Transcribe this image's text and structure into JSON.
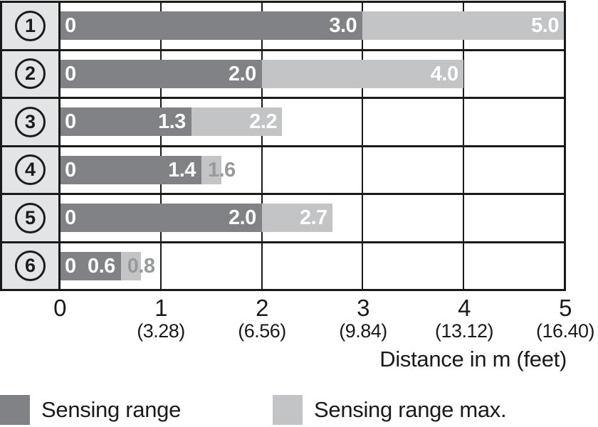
{
  "chart_data": {
    "type": "bar",
    "orientation": "horizontal",
    "stacked": true,
    "x_axis": {
      "title": "Distance in m (feet)",
      "range_m": [
        0,
        5
      ],
      "grid": true,
      "ticks": [
        {
          "m": "0",
          "feet": ""
        },
        {
          "m": "1",
          "feet": "(3.28)"
        },
        {
          "m": "2",
          "feet": "(6.56)"
        },
        {
          "m": "3",
          "feet": "(9.84)"
        },
        {
          "m": "4",
          "feet": "(13.12)"
        },
        {
          "m": "5",
          "feet": "(16.40)"
        }
      ]
    },
    "rows": [
      {
        "label": "1",
        "start_label": "0",
        "sensing_m": 3.0,
        "sensing_label": "3.0",
        "max_m": 5.0,
        "max_label": "5.0",
        "max_label_placement": "inside"
      },
      {
        "label": "2",
        "start_label": "0",
        "sensing_m": 2.0,
        "sensing_label": "2.0",
        "max_m": 4.0,
        "max_label": "4.0",
        "max_label_placement": "inside"
      },
      {
        "label": "3",
        "start_label": "0",
        "sensing_m": 1.3,
        "sensing_label": "1.3",
        "max_m": 2.2,
        "max_label": "2.2",
        "max_label_placement": "inside"
      },
      {
        "label": "4",
        "start_label": "0",
        "sensing_m": 1.4,
        "sensing_label": "1.4",
        "max_m": 1.6,
        "max_label": "1.6",
        "max_label_placement": "edge"
      },
      {
        "label": "5",
        "start_label": "0",
        "sensing_m": 2.0,
        "sensing_label": "2.0",
        "max_m": 2.7,
        "max_label": "2.7",
        "max_label_placement": "inside"
      },
      {
        "label": "6",
        "start_label": "0",
        "sensing_m": 0.6,
        "sensing_label": "0.6",
        "max_m": 0.8,
        "max_label": "0.8",
        "max_label_placement": "edge"
      }
    ],
    "legend": [
      {
        "label": "Sensing range",
        "swatch": "dark"
      },
      {
        "label": "Sensing range max.",
        "swatch": "light"
      }
    ]
  },
  "colors": {
    "sensing": "#808285",
    "sensing_max": "#c2c4c6",
    "row_header_bg": "#e3e4e5",
    "border": "#1a1a1a",
    "bar_value_text": "#ffffff",
    "edge_value_text": "#97999c",
    "axis_text": "#1a1a1a"
  }
}
